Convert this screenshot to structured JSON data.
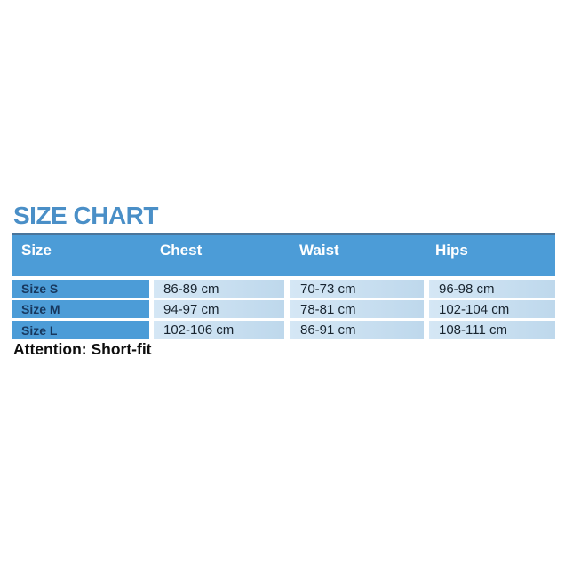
{
  "title": "SIZE CHART",
  "attention_note": "Attention: Short-fit",
  "table": {
    "columns": [
      "Size",
      "Chest",
      "Waist",
      "Hips"
    ],
    "rows": [
      {
        "size": "Size S",
        "chest": "86-89 cm",
        "waist": "70-73 cm",
        "hips": "96-98 cm"
      },
      {
        "size": "Size M",
        "chest": "94-97 cm",
        "waist": "78-81 cm",
        "hips": "102-104 cm"
      },
      {
        "size": "Size L",
        "chest": "102-106 cm",
        "waist": "86-91 cm",
        "hips": "108-111 cm"
      }
    ]
  },
  "colors": {
    "background": "#ffffff",
    "title_blue": "#4a8fc7",
    "header_blue": "#4c9cd7",
    "header_top_border": "#4a759b",
    "header_text": "#ffffff",
    "row_label_blue": "#4c9cd7",
    "row_label_text": "#17375d",
    "data_cell_light_start": "#d5e7f5",
    "data_cell_light_end": "#bed8ec",
    "data_text": "#18242f",
    "note_text": "#0e0e0e"
  },
  "chart_data": {
    "type": "table",
    "title": "SIZE CHART",
    "columns": [
      "Size",
      "Chest",
      "Waist",
      "Hips"
    ],
    "rows": [
      [
        "Size S",
        "86-89 cm",
        "70-73 cm",
        "96-98 cm"
      ],
      [
        "Size M",
        "94-97 cm",
        "78-81 cm",
        "102-104 cm"
      ],
      [
        "Size L",
        "102-106 cm",
        "86-91 cm",
        "108-111 cm"
      ]
    ],
    "note": "Attention: Short-fit"
  }
}
